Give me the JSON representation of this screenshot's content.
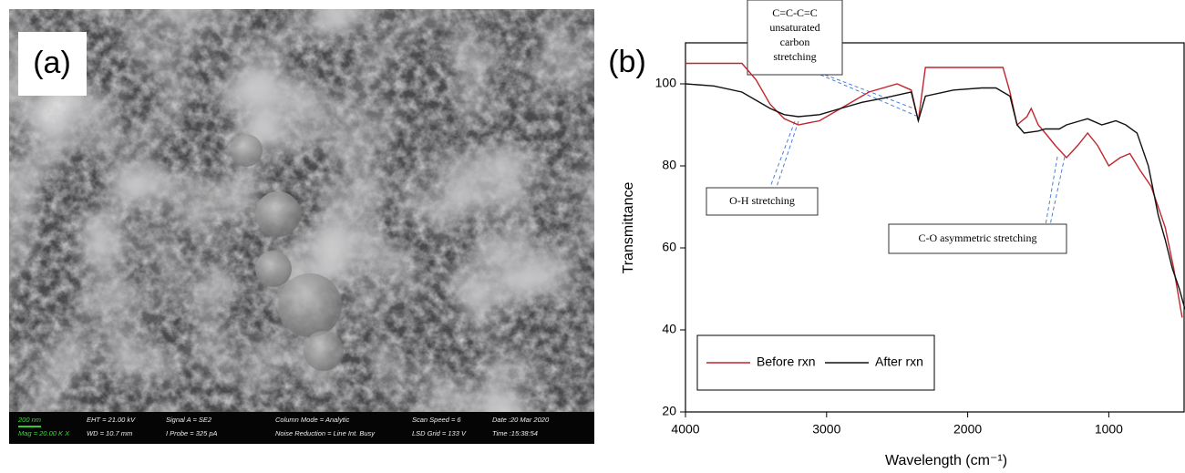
{
  "sem": {
    "label": "(a)",
    "info": [
      [
        "200 nm",
        "Mag =  20.00 K X"
      ],
      [
        "EHT = 21.00 kV",
        "WD = 10.7 mm"
      ],
      [
        "Signal A = SE2",
        "I Probe =   325 pA"
      ],
      [
        "Column Mode = Analytic",
        "Noise Reduction = Line Int. Busy"
      ],
      [
        "Scan Speed = 6",
        "LSD Grid =   133 V"
      ],
      [
        "Date :20 Mar 2020",
        "Time :15:38:54"
      ]
    ]
  },
  "chart_data": {
    "type": "line",
    "panel_label": "(b)",
    "x_label": "Wavelength (cm⁻¹)",
    "y_label": "Transmittance",
    "xlim": [
      4000,
      460
    ],
    "ylim": [
      20,
      110
    ],
    "xticks": [
      4000,
      3000,
      2000,
      1000
    ],
    "yticks": [
      20,
      40,
      60,
      80,
      100
    ],
    "legend": "lower left",
    "series": [
      {
        "name": "Before rxn",
        "color": "#c0262d",
        "x": [
          4000,
          3600,
          3500,
          3400,
          3300,
          3200,
          3050,
          2900,
          2700,
          2500,
          2400,
          2350,
          2300,
          2100,
          1900,
          1750,
          1700,
          1650,
          1580,
          1550,
          1500,
          1450,
          1380,
          1300,
          1220,
          1150,
          1080,
          1000,
          920,
          850,
          780,
          700,
          650,
          600,
          540,
          480
        ],
        "values": [
          105,
          105,
          101,
          95,
          91.5,
          90,
          91,
          94,
          98,
          100,
          98.5,
          91,
          104,
          104,
          104,
          104,
          98,
          90,
          92,
          94,
          90,
          88,
          85,
          82,
          85,
          88,
          85,
          80,
          82,
          83,
          79,
          75,
          70,
          65,
          55,
          43
        ]
      },
      {
        "name": "After rxn",
        "color": "#111111",
        "x": [
          4000,
          3800,
          3600,
          3500,
          3400,
          3300,
          3200,
          3050,
          2900,
          2750,
          2600,
          2400,
          2350,
          2300,
          2100,
          1900,
          1800,
          1750,
          1700,
          1650,
          1600,
          1500,
          1450,
          1350,
          1300,
          1200,
          1150,
          1050,
          1000,
          950,
          880,
          800,
          720,
          650,
          600,
          550,
          500,
          460
        ],
        "values": [
          100,
          99.5,
          98,
          96,
          94,
          92.5,
          92,
          92.5,
          94,
          95.5,
          96.5,
          98,
          91,
          97,
          98.5,
          99,
          99,
          98,
          97,
          90,
          88,
          88.5,
          89,
          89,
          90,
          91,
          91.5,
          90,
          90.5,
          91,
          90,
          88,
          80,
          68,
          62,
          55,
          50,
          45
        ]
      }
    ],
    "annotations": [
      {
        "lines": [
          "C=C-C=C",
          "unsaturated",
          "carbon",
          "stretching"
        ]
      },
      {
        "lines": [
          "O-H stretching"
        ]
      },
      {
        "lines": [
          "C-O asymmetric stretching"
        ]
      }
    ]
  }
}
